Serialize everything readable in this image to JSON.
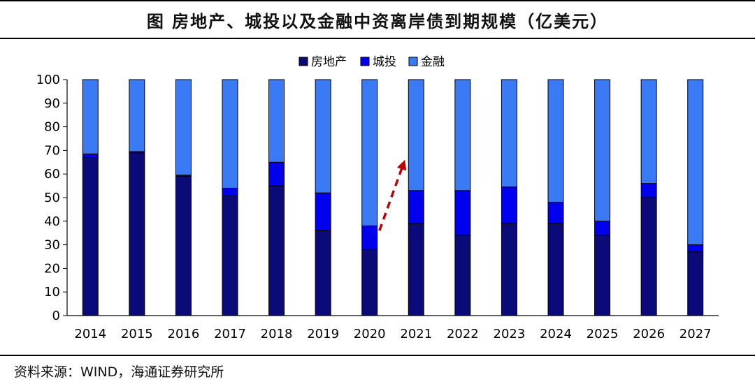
{
  "title": "图  房地产、城投以及金融中资离岸债到期规模（亿美元）",
  "source": "资料来源：WIND，海通证券研究所",
  "colors": {
    "real_estate": "#0a0a78",
    "chengtou": "#0000ee",
    "finance": "#3a7af5",
    "arrow": "#c00000"
  },
  "chart_data": {
    "type": "bar",
    "stacked": true,
    "title": "房地产、城投以及金融中资离岸债到期规模（亿美元）",
    "xlabel": "",
    "ylabel": "",
    "ylim": [
      0,
      100
    ],
    "yticks": [
      0,
      10,
      20,
      30,
      40,
      50,
      60,
      70,
      80,
      90,
      100
    ],
    "legend_position": "top-center",
    "categories": [
      "2014",
      "2015",
      "2016",
      "2017",
      "2018",
      "2019",
      "2020",
      "2021",
      "2022",
      "2023",
      "2024",
      "2025",
      "2026",
      "2027"
    ],
    "series": [
      {
        "name": "房地产",
        "color": "#0a0a78",
        "values": [
          67,
          69,
          59,
          51,
          55,
          36,
          28,
          39,
          34,
          39,
          39,
          34,
          50,
          27
        ]
      },
      {
        "name": "城投",
        "color": "#0000ee",
        "values": [
          1.5,
          0.5,
          0.5,
          3,
          10,
          16,
          10,
          14,
          19,
          15.5,
          9,
          6,
          6,
          3
        ]
      },
      {
        "name": "金融",
        "color": "#3a7af5",
        "values": [
          31.5,
          30.5,
          40.5,
          46,
          35,
          48,
          62,
          47,
          47,
          45.5,
          52,
          60,
          44,
          70
        ]
      }
    ],
    "annotations": [
      {
        "type": "dashed-arrow",
        "from": "2020",
        "to": "2021",
        "description": "upward trend"
      }
    ]
  }
}
